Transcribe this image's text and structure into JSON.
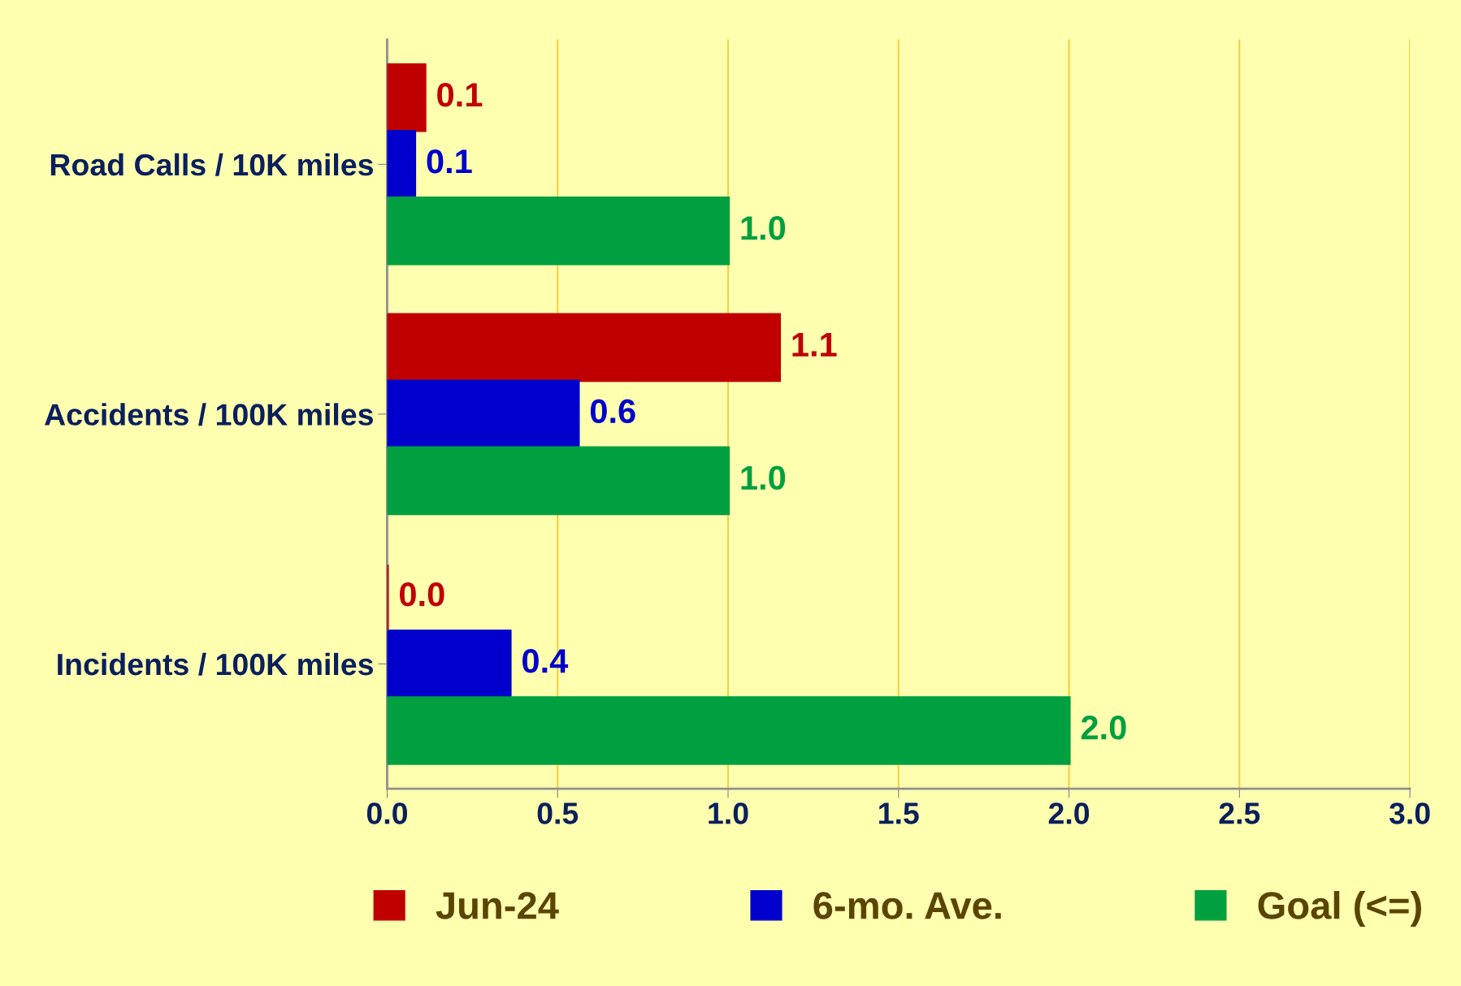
{
  "chart_data": {
    "type": "bar",
    "orientation": "horizontal",
    "categories": [
      "Road Calls / 10K miles",
      "Accidents / 100K miles",
      "Incidents / 100K miles"
    ],
    "series": [
      {
        "name": "Jun-24",
        "color": "#c00000",
        "values": [
          0.11,
          1.15,
          0.0
        ],
        "value_labels": [
          "0.1",
          "1.1",
          "0.0"
        ]
      },
      {
        "name": "6-mo. Ave.",
        "color": "#0000cc",
        "values": [
          0.08,
          0.56,
          0.36
        ],
        "value_labels": [
          "0.1",
          "0.6",
          "0.4"
        ]
      },
      {
        "name": "Goal (<=)",
        "color": "#00a040",
        "values": [
          1.0,
          1.0,
          2.0
        ],
        "value_labels": [
          "1.0",
          "1.0",
          "2.0"
        ]
      }
    ],
    "xlim": [
      0,
      3
    ],
    "xticks": [
      {
        "value": 0,
        "label": "0.0"
      },
      {
        "value": 0.5,
        "label": "0.5"
      },
      {
        "value": 1,
        "label": "1.0"
      },
      {
        "value": 1.5,
        "label": "1.5"
      },
      {
        "value": 2,
        "label": "2.0"
      },
      {
        "value": 2.5,
        "label": "2.5"
      },
      {
        "value": 3,
        "label": "3.0"
      }
    ],
    "grid": "x",
    "legend": "bottom"
  }
}
